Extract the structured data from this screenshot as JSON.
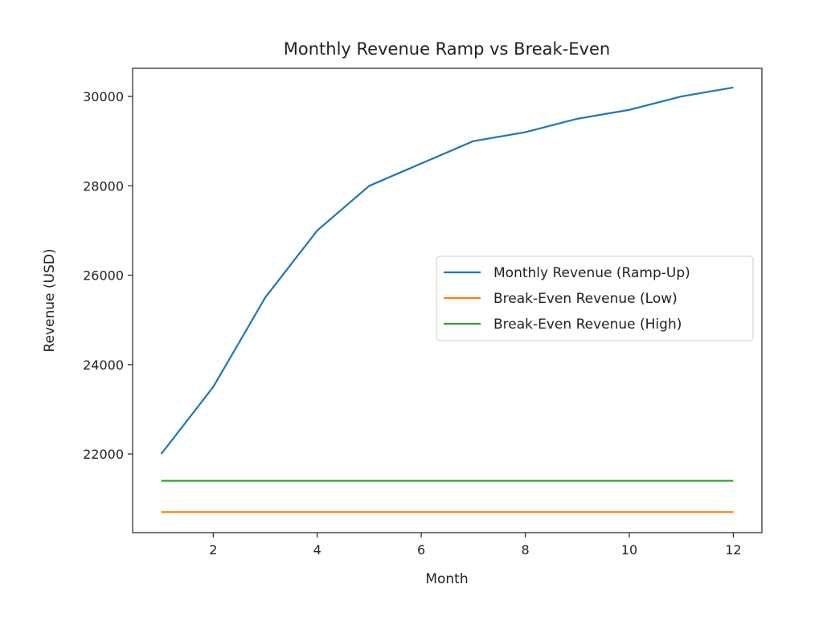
{
  "chart_data": {
    "type": "line",
    "title": "Monthly Revenue Ramp vs Break-Even",
    "xlabel": "Month",
    "ylabel": "Revenue (USD)",
    "x": [
      1,
      2,
      3,
      4,
      5,
      6,
      7,
      8,
      9,
      10,
      11,
      12
    ],
    "xlim": [
      0.45,
      12.55
    ],
    "ylim": [
      20240,
      30630
    ],
    "xticks": [
      2,
      4,
      6,
      8,
      10,
      12
    ],
    "yticks": [
      22000,
      24000,
      26000,
      28000,
      30000
    ],
    "grid": false,
    "legend_position": "center-right",
    "series": [
      {
        "name": "Monthly Revenue (Ramp-Up)",
        "color": "#1f77b4",
        "values": [
          22000,
          23500,
          25500,
          27000,
          28000,
          28500,
          29000,
          29200,
          29500,
          29700,
          30000,
          30200
        ]
      },
      {
        "name": "Break-Even Revenue (Low)",
        "color": "#ff7f0e",
        "values": [
          20700,
          20700,
          20700,
          20700,
          20700,
          20700,
          20700,
          20700,
          20700,
          20700,
          20700,
          20700
        ]
      },
      {
        "name": "Break-Even Revenue (High)",
        "color": "#2ca02c",
        "values": [
          21400,
          21400,
          21400,
          21400,
          21400,
          21400,
          21400,
          21400,
          21400,
          21400,
          21400,
          21400
        ]
      }
    ]
  }
}
